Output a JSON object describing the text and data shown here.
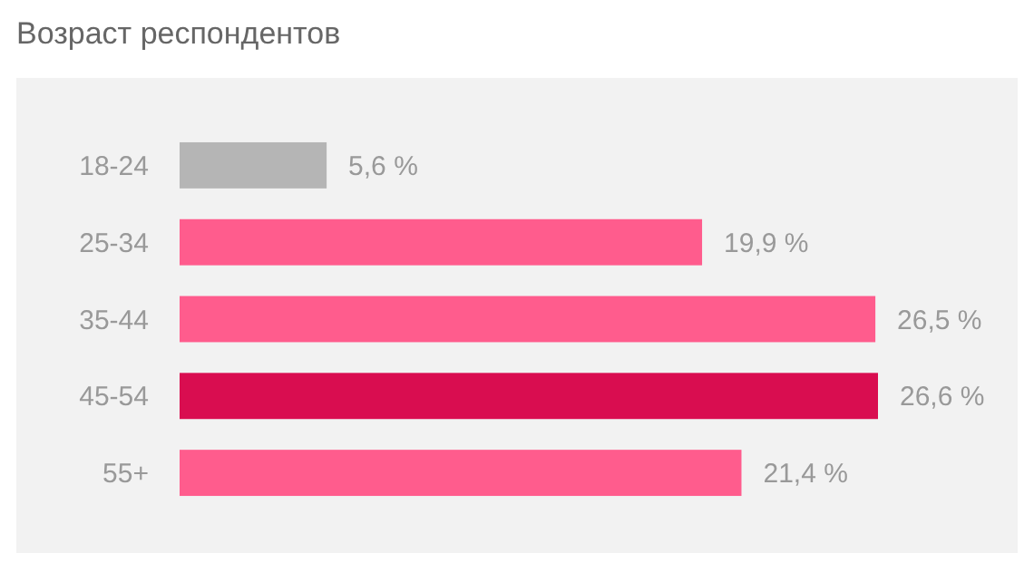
{
  "chart_data": {
    "type": "bar",
    "orientation": "horizontal",
    "title": "Возраст респондентов",
    "categories": [
      "18-24",
      "25-34",
      "35-44",
      "45-54",
      "55+"
    ],
    "values": [
      5.6,
      19.9,
      26.5,
      26.6,
      21.4
    ],
    "colors": [
      "#b5b5b5",
      "#ff5c8d",
      "#ff5c8d",
      "#d90d50",
      "#ff5c8d"
    ],
    "value_labels": [
      "5,6 %",
      "19,9 %",
      "26,5 %",
      "26,6 %",
      "21,4 %"
    ]
  }
}
